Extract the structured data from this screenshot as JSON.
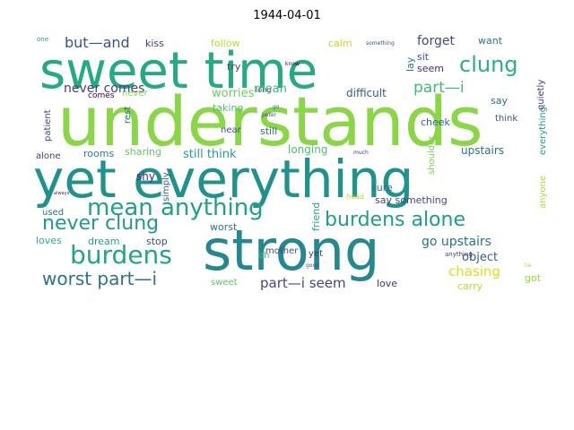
{
  "title": "1944-04-01",
  "words": [
    {
      "text": "understands",
      "color": "#8bd646"
    },
    {
      "text": "yet everything",
      "color": "#20928c"
    },
    {
      "text": "strong",
      "color": "#23898e"
    },
    {
      "text": "sweet time",
      "color": "#25ab82"
    },
    {
      "text": "mean anything",
      "color": "#1fa187"
    },
    {
      "text": "burdens alone",
      "color": "#1f9e89"
    },
    {
      "text": "never clung",
      "color": "#1e9b8a"
    },
    {
      "text": "burdens",
      "color": "#22a785"
    },
    {
      "text": "clung",
      "color": "#2ab07f"
    },
    {
      "text": "worst part—i",
      "color": "#2c728e"
    },
    {
      "text": "part—i",
      "color": "#3fbc73"
    },
    {
      "text": "but—and",
      "color": "#3b528b"
    },
    {
      "text": "part—i seem",
      "color": "#404688"
    },
    {
      "text": "go upstairs",
      "color": "#2c728e"
    },
    {
      "text": "forget",
      "color": "#3e4989"
    },
    {
      "text": "chasing",
      "color": "#d8e219"
    },
    {
      "text": "object",
      "color": "#355f8d"
    },
    {
      "text": "never comes",
      "color": "#424086"
    },
    {
      "text": "worries",
      "color": "#6ece58"
    },
    {
      "text": "still think",
      "color": "#1fa188"
    },
    {
      "text": "mean",
      "color": "#3dbc74"
    },
    {
      "text": "longing",
      "color": "#4ac16d"
    },
    {
      "text": "upstairs",
      "color": "#2d708e"
    },
    {
      "text": "difficult",
      "color": "#38588c"
    },
    {
      "text": "say something",
      "color": "#414487"
    },
    {
      "text": "sharing",
      "color": "#5ec962"
    },
    {
      "text": "shy",
      "color": "#482677"
    },
    {
      "text": "kiss",
      "color": "#433e85"
    },
    {
      "text": "follow",
      "color": "#b5de2b"
    },
    {
      "text": "calm",
      "color": "#b8de29"
    },
    {
      "text": "want",
      "color": "#2a788e"
    },
    {
      "text": "try",
      "color": "#404588"
    },
    {
      "text": "sit",
      "color": "#3b528b"
    },
    {
      "text": "seem",
      "color": "#472d7b"
    },
    {
      "text": "say",
      "color": "#2d708e"
    },
    {
      "text": "cheek",
      "color": "#33638d"
    },
    {
      "text": "think",
      "color": "#3a548c"
    },
    {
      "text": "comes",
      "color": "#440154"
    },
    {
      "text": "never",
      "color": "#86d549"
    },
    {
      "text": "taking",
      "color": "#52c569"
    },
    {
      "text": "near",
      "color": "#3e4a89"
    },
    {
      "text": "still",
      "color": "#31688e"
    },
    {
      "text": "rooms",
      "color": "#26828e"
    },
    {
      "text": "worst",
      "color": "#2c728e"
    },
    {
      "text": "mother",
      "color": "#3b528b"
    },
    {
      "text": "alone",
      "color": "#443b84"
    },
    {
      "text": "used",
      "color": "#2c728e"
    },
    {
      "text": "loves",
      "color": "#2db27d"
    },
    {
      "text": "dream",
      "color": "#20a386"
    },
    {
      "text": "stop",
      "color": "#3e4a89"
    },
    {
      "text": "oh",
      "color": "#3fbc73"
    },
    {
      "text": "yet",
      "color": "#443983"
    },
    {
      "text": "sweet",
      "color": "#5ec962"
    },
    {
      "text": "love",
      "color": "#453781"
    },
    {
      "text": "carry",
      "color": "#b5de2b"
    },
    {
      "text": "got",
      "color": "#93d741"
    },
    {
      "text": "sure",
      "color": "#2c728e"
    },
    {
      "text": "patient",
      "color": "#404688"
    },
    {
      "text": "rest",
      "color": "#31688e"
    },
    {
      "text": "simply",
      "color": "#365c8d"
    },
    {
      "text": "friend",
      "color": "#22a884"
    },
    {
      "text": "shoulder",
      "color": "#7ad151"
    },
    {
      "text": "anyone",
      "color": "#a8db34"
    },
    {
      "text": "lay",
      "color": "#2c728e"
    },
    {
      "text": "quietly",
      "color": "#453781"
    },
    {
      "text": "everything",
      "color": "#20a486"
    },
    {
      "text": "one",
      "color": "#1f9e89"
    },
    {
      "text": "know",
      "color": "#440154"
    },
    {
      "text": "long",
      "color": "#3b528b"
    },
    {
      "text": "something",
      "color": "#3b528b"
    },
    {
      "text": "go",
      "color": "#2c728e"
    },
    {
      "text": "peter",
      "color": "#3e4a89"
    },
    {
      "text": "much",
      "color": "#443983"
    },
    {
      "text": "head",
      "color": "#b5de2b"
    },
    {
      "text": "always",
      "color": "#482173"
    },
    {
      "text": "anything",
      "color": "#453781"
    },
    {
      "text": "good",
      "color": "#3b528b"
    },
    {
      "text": "tie",
      "color": "#a8db34"
    }
  ]
}
